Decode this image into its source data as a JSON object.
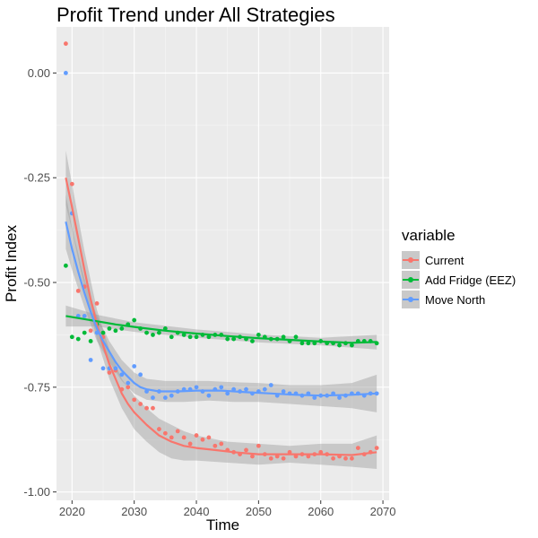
{
  "chart_data": {
    "type": "scatter",
    "title": "Profit Trend under All Strategies",
    "xlabel": "Time",
    "ylabel": "Profit Index",
    "xlim": [
      2017.5,
      2071.0
    ],
    "ylim": [
      -1.02,
      0.11
    ],
    "x_ticks": [
      2020,
      2030,
      2040,
      2050,
      2060,
      2070
    ],
    "y_ticks": [
      0.0,
      -0.25,
      -0.5,
      -0.75,
      -1.0
    ],
    "y_tick_labels": [
      "0.00",
      "-0.25",
      "-0.50",
      "-0.75",
      "-1.00"
    ],
    "grid": true,
    "legend": {
      "title": "variable",
      "placement": "right"
    },
    "series": [
      {
        "name": "Current",
        "color": "#F8766D",
        "points": [
          [
            2019,
            0.07
          ],
          [
            2020,
            -0.265
          ],
          [
            2021,
            -0.52
          ],
          [
            2022,
            -0.51
          ],
          [
            2023,
            -0.615
          ],
          [
            2024,
            -0.55
          ],
          [
            2025,
            -0.63
          ],
          [
            2026,
            -0.715
          ],
          [
            2027,
            -0.71
          ],
          [
            2028,
            -0.755
          ],
          [
            2029,
            -0.75
          ],
          [
            2030,
            -0.78
          ],
          [
            2031,
            -0.79
          ],
          [
            2032,
            -0.8
          ],
          [
            2033,
            -0.8
          ],
          [
            2034,
            -0.85
          ],
          [
            2035,
            -0.86
          ],
          [
            2036,
            -0.87
          ],
          [
            2037,
            -0.855
          ],
          [
            2038,
            -0.87
          ],
          [
            2039,
            -0.885
          ],
          [
            2040,
            -0.865
          ],
          [
            2041,
            -0.875
          ],
          [
            2042,
            -0.87
          ],
          [
            2043,
            -0.89
          ],
          [
            2044,
            -0.885
          ],
          [
            2045,
            -0.9
          ],
          [
            2046,
            -0.905
          ],
          [
            2047,
            -0.91
          ],
          [
            2048,
            -0.9
          ],
          [
            2049,
            -0.915
          ],
          [
            2050,
            -0.89
          ],
          [
            2051,
            -0.91
          ],
          [
            2052,
            -0.92
          ],
          [
            2053,
            -0.915
          ],
          [
            2054,
            -0.92
          ],
          [
            2055,
            -0.905
          ],
          [
            2056,
            -0.915
          ],
          [
            2057,
            -0.91
          ],
          [
            2058,
            -0.915
          ],
          [
            2059,
            -0.91
          ],
          [
            2060,
            -0.905
          ],
          [
            2061,
            -0.91
          ],
          [
            2062,
            -0.92
          ],
          [
            2063,
            -0.915
          ],
          [
            2064,
            -0.92
          ],
          [
            2065,
            -0.92
          ],
          [
            2066,
            -0.895
          ],
          [
            2067,
            -0.91
          ],
          [
            2068,
            -0.905
          ],
          [
            2069,
            -0.895
          ]
        ],
        "trend": [
          [
            2019,
            -0.25
          ],
          [
            2020,
            -0.32
          ],
          [
            2021,
            -0.395
          ],
          [
            2022,
            -0.47
          ],
          [
            2023,
            -0.54
          ],
          [
            2024,
            -0.6
          ],
          [
            2025,
            -0.65
          ],
          [
            2026,
            -0.695
          ],
          [
            2027,
            -0.73
          ],
          [
            2028,
            -0.765
          ],
          [
            2029,
            -0.79
          ],
          [
            2030,
            -0.81
          ],
          [
            2032,
            -0.84
          ],
          [
            2034,
            -0.865
          ],
          [
            2036,
            -0.88
          ],
          [
            2038,
            -0.89
          ],
          [
            2040,
            -0.895
          ],
          [
            2043,
            -0.9
          ],
          [
            2046,
            -0.905
          ],
          [
            2050,
            -0.91
          ],
          [
            2055,
            -0.91
          ],
          [
            2060,
            -0.91
          ],
          [
            2065,
            -0.912
          ],
          [
            2069,
            -0.905
          ]
        ],
        "band": [
          [
            2019,
            -0.185,
            -0.315
          ],
          [
            2020,
            -0.265,
            -0.375
          ],
          [
            2022,
            -0.425,
            -0.515
          ],
          [
            2024,
            -0.565,
            -0.635
          ],
          [
            2026,
            -0.66,
            -0.73
          ],
          [
            2028,
            -0.73,
            -0.8
          ],
          [
            2030,
            -0.77,
            -0.85
          ],
          [
            2032,
            -0.8,
            -0.88
          ],
          [
            2034,
            -0.825,
            -0.905
          ],
          [
            2036,
            -0.84,
            -0.92
          ],
          [
            2038,
            -0.855,
            -0.925
          ],
          [
            2040,
            -0.865,
            -0.925
          ],
          [
            2045,
            -0.88,
            -0.93
          ],
          [
            2050,
            -0.885,
            -0.935
          ],
          [
            2055,
            -0.89,
            -0.93
          ],
          [
            2060,
            -0.885,
            -0.935
          ],
          [
            2065,
            -0.885,
            -0.94
          ],
          [
            2069,
            -0.865,
            -0.945
          ]
        ]
      },
      {
        "name": "Add Fridge (EEZ)",
        "color": "#00BA38",
        "points": [
          [
            2019,
            -0.46
          ],
          [
            2020,
            -0.63
          ],
          [
            2021,
            -0.635
          ],
          [
            2022,
            -0.62
          ],
          [
            2023,
            -0.64
          ],
          [
            2024,
            -0.6
          ],
          [
            2025,
            -0.62
          ],
          [
            2026,
            -0.61
          ],
          [
            2027,
            -0.615
          ],
          [
            2028,
            -0.61
          ],
          [
            2029,
            -0.6
          ],
          [
            2030,
            -0.59
          ],
          [
            2031,
            -0.61
          ],
          [
            2032,
            -0.62
          ],
          [
            2033,
            -0.625
          ],
          [
            2034,
            -0.62
          ],
          [
            2035,
            -0.61
          ],
          [
            2036,
            -0.63
          ],
          [
            2037,
            -0.62
          ],
          [
            2038,
            -0.625
          ],
          [
            2039,
            -0.63
          ],
          [
            2040,
            -0.63
          ],
          [
            2041,
            -0.625
          ],
          [
            2042,
            -0.63
          ],
          [
            2043,
            -0.625
          ],
          [
            2044,
            -0.625
          ],
          [
            2045,
            -0.635
          ],
          [
            2046,
            -0.635
          ],
          [
            2047,
            -0.63
          ],
          [
            2048,
            -0.635
          ],
          [
            2049,
            -0.64
          ],
          [
            2050,
            -0.625
          ],
          [
            2051,
            -0.63
          ],
          [
            2052,
            -0.635
          ],
          [
            2053,
            -0.635
          ],
          [
            2054,
            -0.63
          ],
          [
            2055,
            -0.64
          ],
          [
            2056,
            -0.63
          ],
          [
            2057,
            -0.645
          ],
          [
            2058,
            -0.645
          ],
          [
            2059,
            -0.645
          ],
          [
            2060,
            -0.64
          ],
          [
            2061,
            -0.645
          ],
          [
            2062,
            -0.645
          ],
          [
            2063,
            -0.65
          ],
          [
            2064,
            -0.645
          ],
          [
            2065,
            -0.65
          ],
          [
            2066,
            -0.64
          ],
          [
            2067,
            -0.64
          ],
          [
            2068,
            -0.64
          ],
          [
            2069,
            -0.645
          ]
        ],
        "trend": [
          [
            2019,
            -0.58
          ],
          [
            2023,
            -0.59
          ],
          [
            2027,
            -0.6
          ],
          [
            2031,
            -0.608
          ],
          [
            2035,
            -0.615
          ],
          [
            2040,
            -0.622
          ],
          [
            2045,
            -0.628
          ],
          [
            2050,
            -0.633
          ],
          [
            2055,
            -0.637
          ],
          [
            2060,
            -0.641
          ],
          [
            2065,
            -0.644
          ],
          [
            2069,
            -0.642
          ]
        ],
        "band": [
          [
            2019,
            -0.555,
            -0.605
          ],
          [
            2024,
            -0.577,
            -0.605
          ],
          [
            2030,
            -0.595,
            -0.618
          ],
          [
            2040,
            -0.612,
            -0.632
          ],
          [
            2050,
            -0.624,
            -0.643
          ],
          [
            2060,
            -0.632,
            -0.65
          ],
          [
            2069,
            -0.625,
            -0.66
          ]
        ]
      },
      {
        "name": "Move North",
        "color": "#619CFF",
        "points": [
          [
            2019,
            0.0
          ],
          [
            2020,
            -0.335
          ],
          [
            2021,
            -0.58
          ],
          [
            2022,
            -0.58
          ],
          [
            2023,
            -0.685
          ],
          [
            2024,
            -0.62
          ],
          [
            2025,
            -0.705
          ],
          [
            2026,
            -0.705
          ],
          [
            2027,
            -0.705
          ],
          [
            2028,
            -0.72
          ],
          [
            2029,
            -0.74
          ],
          [
            2030,
            -0.7
          ],
          [
            2031,
            -0.72
          ],
          [
            2032,
            -0.76
          ],
          [
            2033,
            -0.775
          ],
          [
            2034,
            -0.76
          ],
          [
            2035,
            -0.775
          ],
          [
            2036,
            -0.77
          ],
          [
            2037,
            -0.76
          ],
          [
            2038,
            -0.755
          ],
          [
            2039,
            -0.755
          ],
          [
            2040,
            -0.75
          ],
          [
            2041,
            -0.76
          ],
          [
            2042,
            -0.77
          ],
          [
            2043,
            -0.755
          ],
          [
            2044,
            -0.75
          ],
          [
            2045,
            -0.765
          ],
          [
            2046,
            -0.755
          ],
          [
            2047,
            -0.76
          ],
          [
            2048,
            -0.755
          ],
          [
            2049,
            -0.765
          ],
          [
            2050,
            -0.76
          ],
          [
            2051,
            -0.755
          ],
          [
            2052,
            -0.745
          ],
          [
            2053,
            -0.77
          ],
          [
            2054,
            -0.76
          ],
          [
            2055,
            -0.765
          ],
          [
            2056,
            -0.765
          ],
          [
            2057,
            -0.77
          ],
          [
            2058,
            -0.765
          ],
          [
            2059,
            -0.775
          ],
          [
            2060,
            -0.77
          ],
          [
            2061,
            -0.77
          ],
          [
            2062,
            -0.765
          ],
          [
            2063,
            -0.775
          ],
          [
            2064,
            -0.77
          ],
          [
            2065,
            -0.765
          ],
          [
            2066,
            -0.765
          ],
          [
            2067,
            -0.77
          ],
          [
            2068,
            -0.765
          ],
          [
            2069,
            -0.765
          ]
        ],
        "trend": [
          [
            2019,
            -0.355
          ],
          [
            2020,
            -0.42
          ],
          [
            2021,
            -0.475
          ],
          [
            2022,
            -0.525
          ],
          [
            2023,
            -0.57
          ],
          [
            2024,
            -0.61
          ],
          [
            2025,
            -0.64
          ],
          [
            2026,
            -0.665
          ],
          [
            2027,
            -0.69
          ],
          [
            2028,
            -0.71
          ],
          [
            2029,
            -0.725
          ],
          [
            2030,
            -0.74
          ],
          [
            2031,
            -0.75
          ],
          [
            2032,
            -0.755
          ],
          [
            2034,
            -0.76
          ],
          [
            2037,
            -0.76
          ],
          [
            2040,
            -0.758
          ],
          [
            2044,
            -0.758
          ],
          [
            2048,
            -0.762
          ],
          [
            2052,
            -0.765
          ],
          [
            2056,
            -0.768
          ],
          [
            2060,
            -0.77
          ],
          [
            2065,
            -0.768
          ],
          [
            2069,
            -0.765
          ]
        ],
        "band": [
          [
            2019,
            -0.29,
            -0.42
          ],
          [
            2020,
            -0.37,
            -0.47
          ],
          [
            2022,
            -0.49,
            -0.56
          ],
          [
            2024,
            -0.58,
            -0.64
          ],
          [
            2026,
            -0.64,
            -0.69
          ],
          [
            2028,
            -0.685,
            -0.735
          ],
          [
            2030,
            -0.715,
            -0.765
          ],
          [
            2032,
            -0.73,
            -0.78
          ],
          [
            2035,
            -0.735,
            -0.785
          ],
          [
            2038,
            -0.735,
            -0.785
          ],
          [
            2042,
            -0.735,
            -0.782
          ],
          [
            2046,
            -0.738,
            -0.785
          ],
          [
            2050,
            -0.74,
            -0.785
          ],
          [
            2055,
            -0.745,
            -0.79
          ],
          [
            2060,
            -0.745,
            -0.795
          ],
          [
            2065,
            -0.74,
            -0.8
          ],
          [
            2069,
            -0.72,
            -0.81
          ]
        ]
      }
    ]
  }
}
